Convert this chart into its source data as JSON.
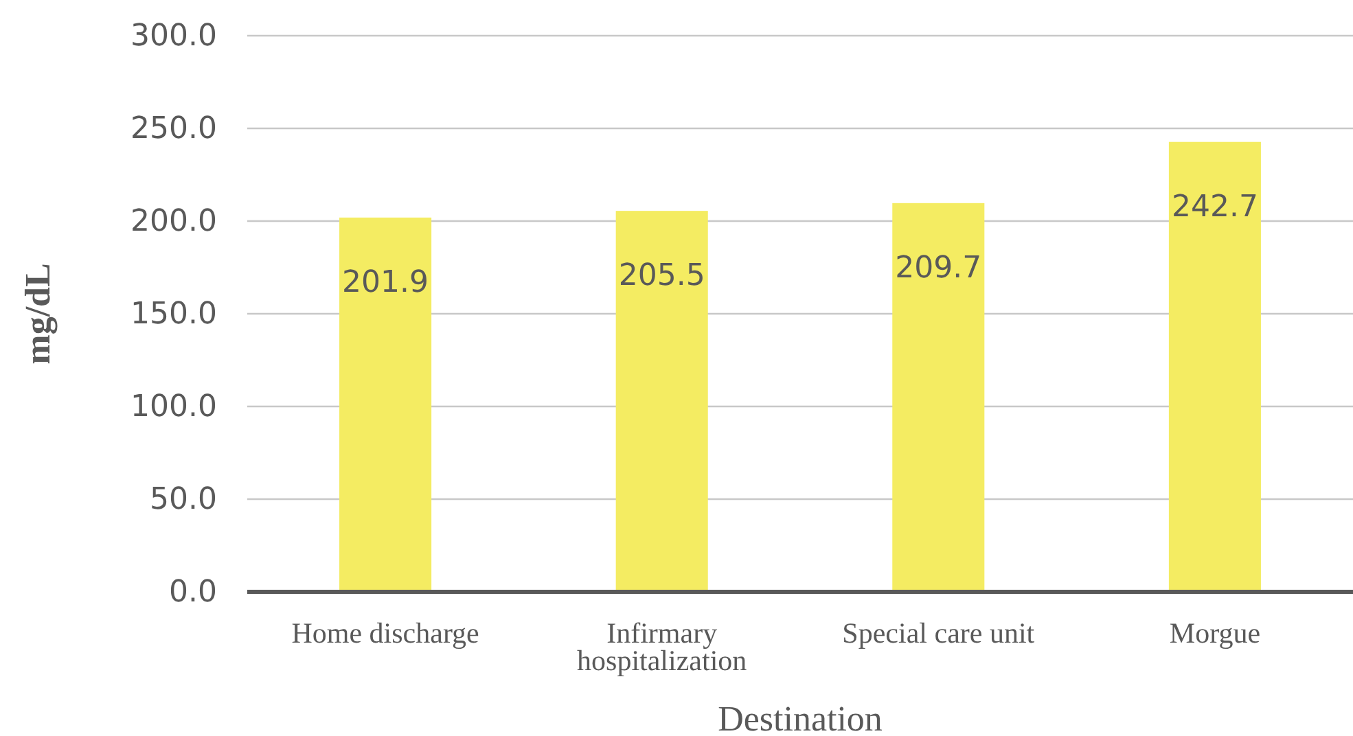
{
  "chart_data": {
    "type": "bar",
    "xlabel": "Destination",
    "ylabel": "mg/dL",
    "categories": [
      "Home discharge",
      "Infirmary hospitalization",
      "Special care unit",
      "Morgue"
    ],
    "values": [
      201.9,
      205.5,
      209.7,
      242.7
    ],
    "color": "#f4ec62",
    "ylim": [
      0,
      300
    ],
    "yticks": [
      {
        "value": 0,
        "label": "0.0"
      },
      {
        "value": 50,
        "label": "50.0"
      },
      {
        "value": 100,
        "label": "100.0"
      },
      {
        "value": 150,
        "label": "150.0"
      },
      {
        "value": 200,
        "label": "200.0"
      },
      {
        "value": 250,
        "label": "250.0"
      },
      {
        "value": 300,
        "label": "300.0"
      }
    ],
    "grid": "y",
    "data_labels": true
  }
}
